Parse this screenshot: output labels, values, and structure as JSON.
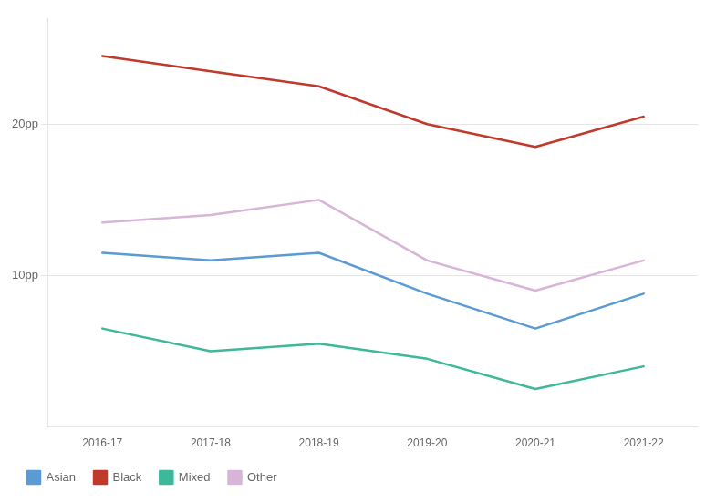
{
  "chart_data": {
    "type": "line",
    "categories": [
      "2016-17",
      "2017-18",
      "2018-19",
      "2019-20",
      "2020-21",
      "2021-22"
    ],
    "series": [
      {
        "name": "Asian",
        "color": "#5b9bd5",
        "values": [
          11.5,
          11.0,
          11.5,
          8.8,
          6.5,
          8.8
        ]
      },
      {
        "name": "Black",
        "color": "#c0392b",
        "values": [
          24.5,
          23.5,
          22.5,
          20.0,
          18.5,
          20.5
        ]
      },
      {
        "name": "Mixed",
        "color": "#3db89a",
        "values": [
          6.5,
          5.0,
          5.5,
          4.5,
          2.5,
          4.0
        ]
      },
      {
        "name": "Other",
        "color": "#d8b4d8",
        "values": [
          13.5,
          14.0,
          15.0,
          11.0,
          9.0,
          11.0
        ]
      }
    ],
    "ylim": [
      0,
      27
    ],
    "yticks": [
      {
        "value": 10,
        "label": "10pp"
      },
      {
        "value": 20,
        "label": "20pp"
      }
    ],
    "grid": true,
    "legend": "bottom"
  }
}
